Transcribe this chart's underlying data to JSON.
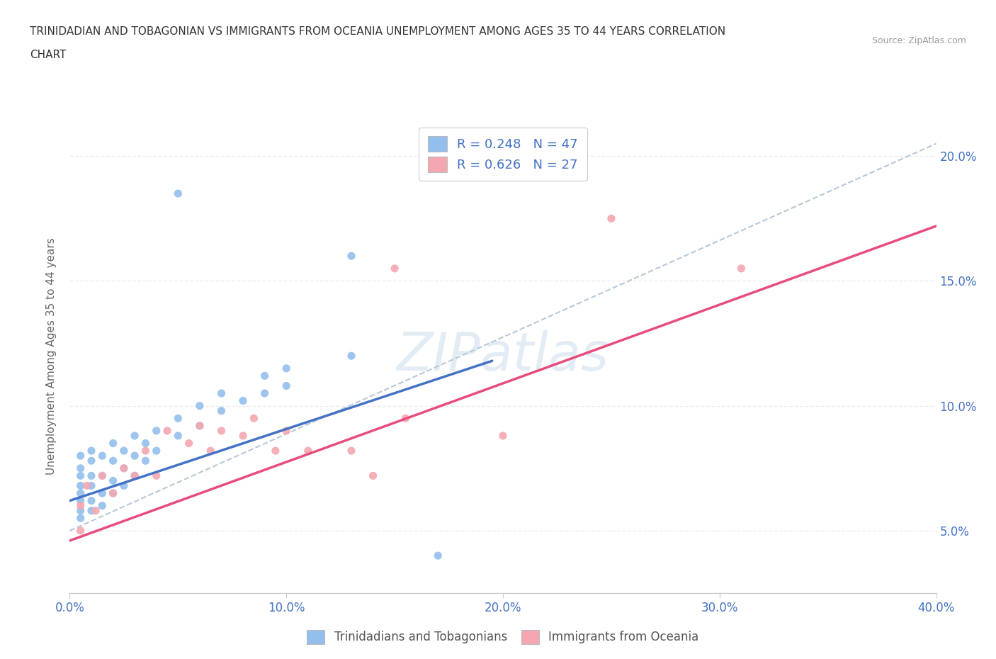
{
  "title_line1": "TRINIDADIAN AND TOBAGONIAN VS IMMIGRANTS FROM OCEANIA UNEMPLOYMENT AMONG AGES 35 TO 44 YEARS CORRELATION",
  "title_line2": "CHART",
  "source": "Source: ZipAtlas.com",
  "ylabel": "Unemployment Among Ages 35 to 44 years",
  "xlim": [
    0.0,
    0.4
  ],
  "ylim": [
    0.025,
    0.215
  ],
  "xtick_labels": [
    "0.0%",
    "10.0%",
    "20.0%",
    "30.0%",
    "40.0%"
  ],
  "xtick_values": [
    0.0,
    0.1,
    0.2,
    0.3,
    0.4
  ],
  "ytick_labels": [
    "5.0%",
    "10.0%",
    "15.0%",
    "20.0%"
  ],
  "ytick_values": [
    0.05,
    0.1,
    0.15,
    0.2
  ],
  "blue_R": "0.248",
  "blue_N": "47",
  "pink_R": "0.626",
  "pink_N": "27",
  "blue_color": "#92BFED",
  "pink_color": "#F4A7B0",
  "blue_line_color": "#4472C4",
  "pink_line_color": "#E84C7D",
  "legend_label_blue": "Trinidadians and Tobagonians",
  "legend_label_pink": "Immigrants from Oceania",
  "blue_scatter_x": [
    0.005,
    0.005,
    0.005,
    0.005,
    0.005,
    0.005,
    0.005,
    0.005,
    0.01,
    0.01,
    0.01,
    0.01,
    0.01,
    0.01,
    0.015,
    0.015,
    0.015,
    0.015,
    0.02,
    0.02,
    0.02,
    0.02,
    0.025,
    0.025,
    0.025,
    0.03,
    0.03,
    0.03,
    0.035,
    0.035,
    0.04,
    0.04,
    0.05,
    0.05,
    0.06,
    0.06,
    0.07,
    0.07,
    0.08,
    0.09,
    0.09,
    0.1,
    0.1,
    0.13,
    0.05,
    0.13,
    0.17
  ],
  "blue_scatter_y": [
    0.055,
    0.058,
    0.062,
    0.065,
    0.068,
    0.072,
    0.075,
    0.08,
    0.058,
    0.062,
    0.068,
    0.072,
    0.078,
    0.082,
    0.06,
    0.065,
    0.072,
    0.08,
    0.065,
    0.07,
    0.078,
    0.085,
    0.068,
    0.075,
    0.082,
    0.072,
    0.08,
    0.088,
    0.078,
    0.085,
    0.082,
    0.09,
    0.088,
    0.095,
    0.092,
    0.1,
    0.098,
    0.105,
    0.102,
    0.105,
    0.112,
    0.108,
    0.115,
    0.12,
    0.185,
    0.16,
    0.04
  ],
  "pink_scatter_x": [
    0.005,
    0.005,
    0.008,
    0.012,
    0.015,
    0.02,
    0.025,
    0.03,
    0.035,
    0.04,
    0.045,
    0.055,
    0.06,
    0.065,
    0.07,
    0.08,
    0.085,
    0.095,
    0.1,
    0.11,
    0.13,
    0.14,
    0.155,
    0.2,
    0.25,
    0.31,
    0.15
  ],
  "pink_scatter_y": [
    0.05,
    0.06,
    0.068,
    0.058,
    0.072,
    0.065,
    0.075,
    0.072,
    0.082,
    0.072,
    0.09,
    0.085,
    0.092,
    0.082,
    0.09,
    0.088,
    0.095,
    0.082,
    0.09,
    0.082,
    0.082,
    0.072,
    0.095,
    0.088,
    0.175,
    0.155,
    0.155
  ],
  "blue_trendline_x": [
    0.0,
    0.195
  ],
  "blue_trendline_y": [
    0.062,
    0.118
  ],
  "pink_trendline_x": [
    0.0,
    0.4
  ],
  "pink_trendline_y": [
    0.046,
    0.172
  ],
  "dash_line_x": [
    0.0,
    0.4
  ],
  "dash_line_y": [
    0.05,
    0.205
  ],
  "bg_color": "#FFFFFF",
  "grid_color": "#E8E8E8",
  "title_color": "#333333",
  "axis_color": "#4472C4",
  "tick_label_color": "#4472C4"
}
